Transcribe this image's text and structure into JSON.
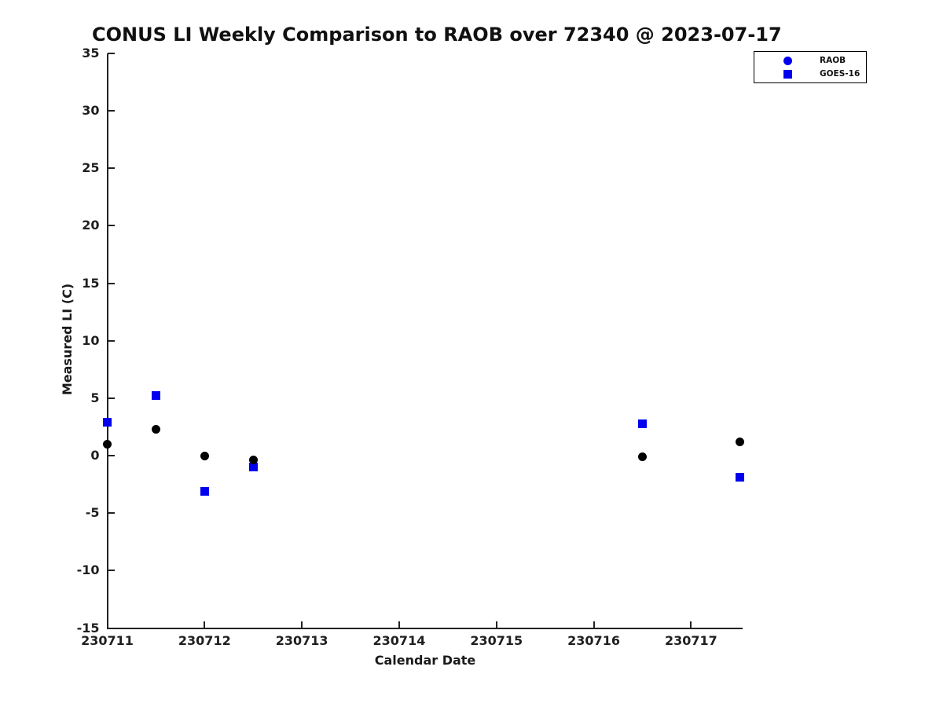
{
  "colors": {
    "raob_marker": "#000000",
    "goes16_marker": "#0000ee",
    "legend_marker_blue": "#0000ee",
    "axis": "#222222",
    "text": "#1a1a1a",
    "background": "#ffffff"
  },
  "chart_data": {
    "type": "scatter",
    "title": "CONUS LI Weekly Comparison to RAOB over 72340 @ 2023-07-17",
    "xlabel": "Calendar Date",
    "ylabel": "Measured LI (C)",
    "xlim": [
      230711,
      230717.53
    ],
    "ylim": [
      -15,
      35
    ],
    "x_ticks": [
      230711,
      230712,
      230713,
      230714,
      230715,
      230716,
      230717
    ],
    "y_ticks": [
      -15,
      -10,
      -5,
      0,
      5,
      10,
      15,
      20,
      25,
      30,
      35
    ],
    "grid": false,
    "legend_position": "top-right",
    "series": [
      {
        "name": "RAOB",
        "marker": "circle",
        "color": "#000000",
        "legend_marker_color": "#0000ee",
        "points": [
          [
            230711.0,
            1.0
          ],
          [
            230711.5,
            2.3
          ],
          [
            230712.0,
            0.0
          ],
          [
            230712.5,
            -0.4
          ],
          [
            230716.5,
            -0.1
          ],
          [
            230717.5,
            1.2
          ]
        ]
      },
      {
        "name": "GOES-16",
        "marker": "square",
        "color": "#0000ee",
        "legend_marker_color": "#0000ee",
        "points": [
          [
            230711.0,
            2.9
          ],
          [
            230711.5,
            5.2
          ],
          [
            230712.0,
            -3.1
          ],
          [
            230712.5,
            -1.0
          ],
          [
            230716.5,
            2.8
          ],
          [
            230717.5,
            -1.9
          ]
        ]
      }
    ]
  }
}
